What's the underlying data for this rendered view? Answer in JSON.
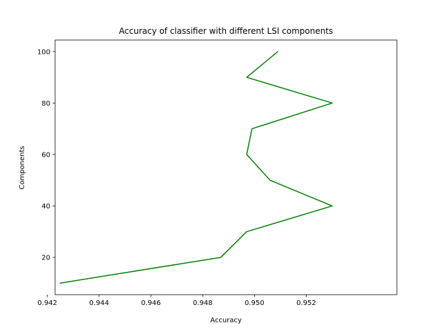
{
  "chart_data": {
    "type": "line",
    "title": "Accuracy of classifier with different LSI components",
    "xlabel": "Accuracy",
    "ylabel": "Components",
    "xlim": [
      0.9423,
      0.9555
    ],
    "ylim": [
      5.5,
      104.5
    ],
    "x_ticks": [
      0.942,
      0.944,
      0.946,
      0.948,
      0.95,
      0.952
    ],
    "x_tick_labels": [
      "0.942",
      "0.944",
      "0.946",
      "0.948",
      "0.950",
      "0.952"
    ],
    "y_ticks": [
      20,
      40,
      60,
      80,
      100
    ],
    "y_tick_labels": [
      "20",
      "40",
      "60",
      "80",
      "100"
    ],
    "grid": false,
    "series": [
      {
        "color": "#008000",
        "points": [
          {
            "x": 0.9425,
            "y": 10
          },
          {
            "x": 0.9487,
            "y": 20
          },
          {
            "x": 0.9497,
            "y": 30
          },
          {
            "x": 0.953,
            "y": 40
          },
          {
            "x": 0.9506,
            "y": 50
          },
          {
            "x": 0.9497,
            "y": 60
          },
          {
            "x": 0.9499,
            "y": 70
          },
          {
            "x": 0.953,
            "y": 80
          },
          {
            "x": 0.9497,
            "y": 90
          },
          {
            "x": 0.9509,
            "y": 100
          }
        ]
      }
    ]
  }
}
